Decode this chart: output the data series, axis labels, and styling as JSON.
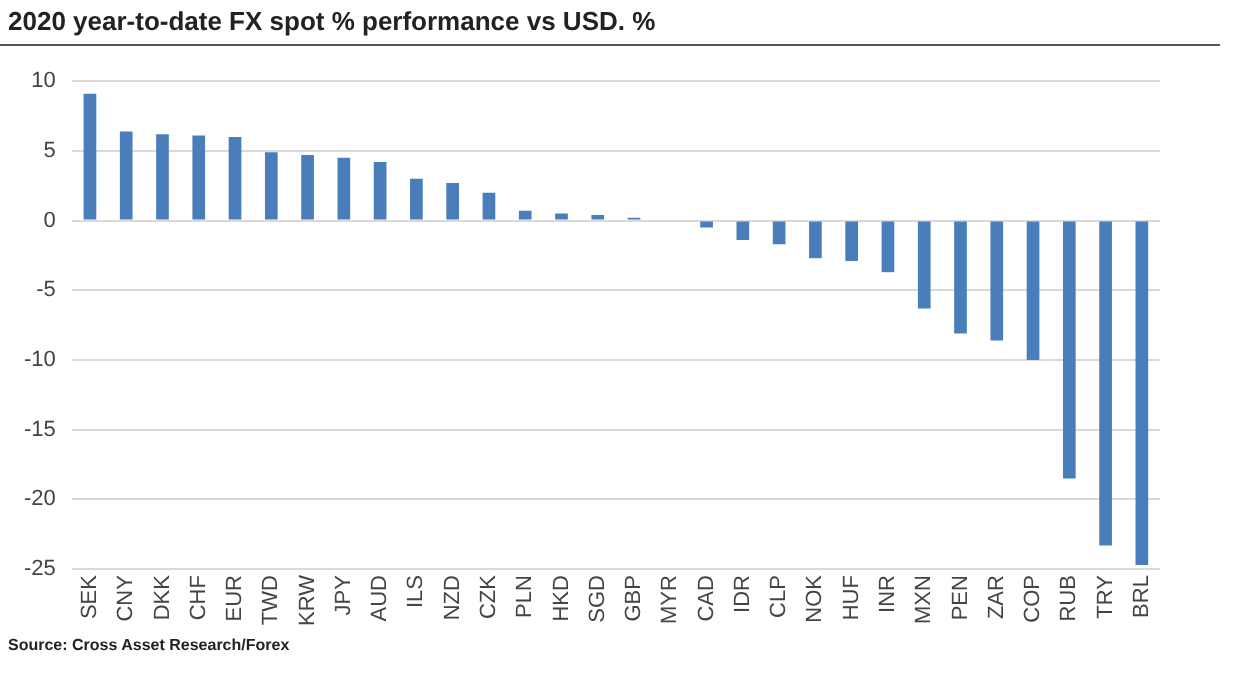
{
  "chart_data": {
    "type": "bar",
    "title": "2020 year-to-date FX spot % performance vs USD. %",
    "categories": [
      "SEK",
      "CNY",
      "DKK",
      "CHF",
      "EUR",
      "TWD",
      "KRW",
      "JPY",
      "AUD",
      "ILS",
      "NZD",
      "CZK",
      "PLN",
      "HKD",
      "SGD",
      "GBP",
      "MYR",
      "CAD",
      "IDR",
      "CLP",
      "NOK",
      "HUF",
      "INR",
      "MXN",
      "PEN",
      "ZAR",
      "COP",
      "RUB",
      "TRY",
      "BRL"
    ],
    "values": [
      9.1,
      6.4,
      6.2,
      6.1,
      6.0,
      4.9,
      4.7,
      4.5,
      4.2,
      3.0,
      2.7,
      2.0,
      0.7,
      0.5,
      0.4,
      0.2,
      0,
      -0.5,
      -1.4,
      -1.7,
      -2.7,
      -2.9,
      -3.7,
      -6.3,
      -8.1,
      -8.6,
      -10.0,
      -18.5,
      -23.3,
      -24.7
    ],
    "color": "#4a7ebb",
    "ylim": [
      -25,
      10
    ],
    "yticks": [
      -25,
      -20,
      -15,
      -10,
      -5,
      0,
      5,
      10
    ],
    "grid": "y",
    "legend": false,
    "annotations": [
      "Source: Cross Asset Research/Forex"
    ]
  }
}
